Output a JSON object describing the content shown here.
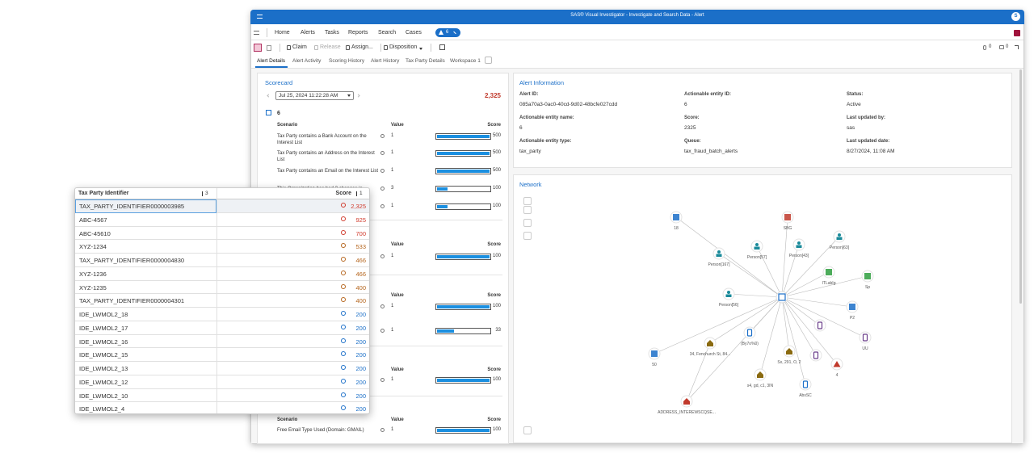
{
  "window": {
    "title": "SAS® Visual Investigator - Investigate and Search Data - Alert",
    "user": "S"
  },
  "nav": {
    "items": [
      "Home",
      "Alerts",
      "Tasks",
      "Reports",
      "Search",
      "Cases"
    ],
    "badge": "6"
  },
  "toolbar": {
    "buttons": [
      "Claim",
      "Release",
      "Assign...",
      "Disposition"
    ],
    "attachments": "0",
    "comments": "0"
  },
  "tabs": [
    "Alert Details",
    "Alert Activity",
    "Scoring History",
    "Alert History",
    "Tax Party Details",
    "Workspace 1"
  ],
  "scorecard": {
    "title": "Scorecard",
    "date": "Jul 25, 2024 11:22:28 AM",
    "total": "2,325",
    "group": "6",
    "columns": [
      "Scenario",
      "Value",
      "Score"
    ],
    "groups": [
      {
        "rows": [
          {
            "scenario": "Tax Party contains a Bank Account on the Interest List",
            "value": 1,
            "score": 500
          },
          {
            "scenario": "Tax Party contains an Address on the Interest List",
            "value": 1,
            "score": 500
          },
          {
            "scenario": "Tax Party contains an Email on the Interest List",
            "value": 1,
            "score": 500
          },
          {
            "scenario": "This Organization has had 3 changes in",
            "value": 3,
            "score": 100
          },
          {
            "scenario": null,
            "value": 1,
            "score": 100
          }
        ]
      },
      {
        "rows": [
          {
            "scenario": null,
            "value": 1,
            "score": 100
          }
        ]
      },
      {
        "rows": [
          {
            "scenario": null,
            "value": 1,
            "score": 100
          },
          {
            "scenario": null,
            "value": 1,
            "score": 33
          }
        ]
      },
      {
        "rows": [
          {
            "scenario": null,
            "value": 1,
            "score": 100
          }
        ]
      },
      {
        "rows": [
          {
            "scenario": "Free Email Type Used (Domain: GMAIL)",
            "value": 1,
            "score": 100
          }
        ]
      }
    ]
  },
  "alert_info": {
    "title": "Alert Information",
    "fields": [
      {
        "label": "Alert ID:",
        "value": "085a70a3-0ac0-40cd-9d02-48bcfe027cdd"
      },
      {
        "label": "Actionable entity ID:",
        "value": "6"
      },
      {
        "label": "Status:",
        "value": "Active"
      },
      {
        "label": "Actionable entity name:",
        "value": "6"
      },
      {
        "label": "Score:",
        "value": "2325"
      },
      {
        "label": "Last updated by:",
        "value": "sas"
      },
      {
        "label": "Actionable entity type:",
        "value": "tax_party"
      },
      {
        "label": "Queue:",
        "value": "tax_fraud_batch_alerts"
      },
      {
        "label": "Last updated date:",
        "value": "8/27/2024, 11:08 AM"
      }
    ]
  },
  "network": {
    "title": "Network",
    "nodes": [
      "18",
      "SBG",
      "Person[167]",
      "Person[57]",
      "Person[43]",
      "Person[63]",
      "ITLabIg",
      "Sp",
      "Person[56]",
      "P2",
      "UU",
      "4",
      "Sx, 291, O, 2",
      "34, Fenchurch St, 84...",
      "(By7o%0)",
      "50",
      "s4, gd, c1, 3IN",
      "AbsSC",
      "ADDRESS_INTEREWSCQSE...",
      null,
      null
    ]
  },
  "table": {
    "columns": [
      {
        "label": "Tax Party Identifier",
        "sort": "3"
      },
      {
        "label": "Score",
        "sort": "1"
      }
    ],
    "rows": [
      [
        "TAX_PARTY_IDENTIFIER0000003985",
        "2,325"
      ],
      [
        "ABC-4567",
        "925"
      ],
      [
        "ABC-45610",
        "700"
      ],
      [
        "XYZ-1234",
        "533"
      ],
      [
        "TAX_PARTY_IDENTIFIER0000004830",
        "466"
      ],
      [
        "XYZ-1236",
        "466"
      ],
      [
        "XYZ-1235",
        "400"
      ],
      [
        "TAX_PARTY_IDENTIFIER0000004301",
        "400"
      ],
      [
        "IDE_LWMOL2_18",
        "200"
      ],
      [
        "IDE_LWMOL2_17",
        "200"
      ],
      [
        "IDE_LWMOL2_16",
        "200"
      ],
      [
        "IDE_LWMOL2_15",
        "200"
      ],
      [
        "IDE_LWMOL2_13",
        "200"
      ],
      [
        "IDE_LWMOL2_12",
        "200"
      ],
      [
        "IDE_LWMOL2_10",
        "200"
      ],
      [
        "IDE_LWMOL2_4",
        "200"
      ]
    ]
  }
}
